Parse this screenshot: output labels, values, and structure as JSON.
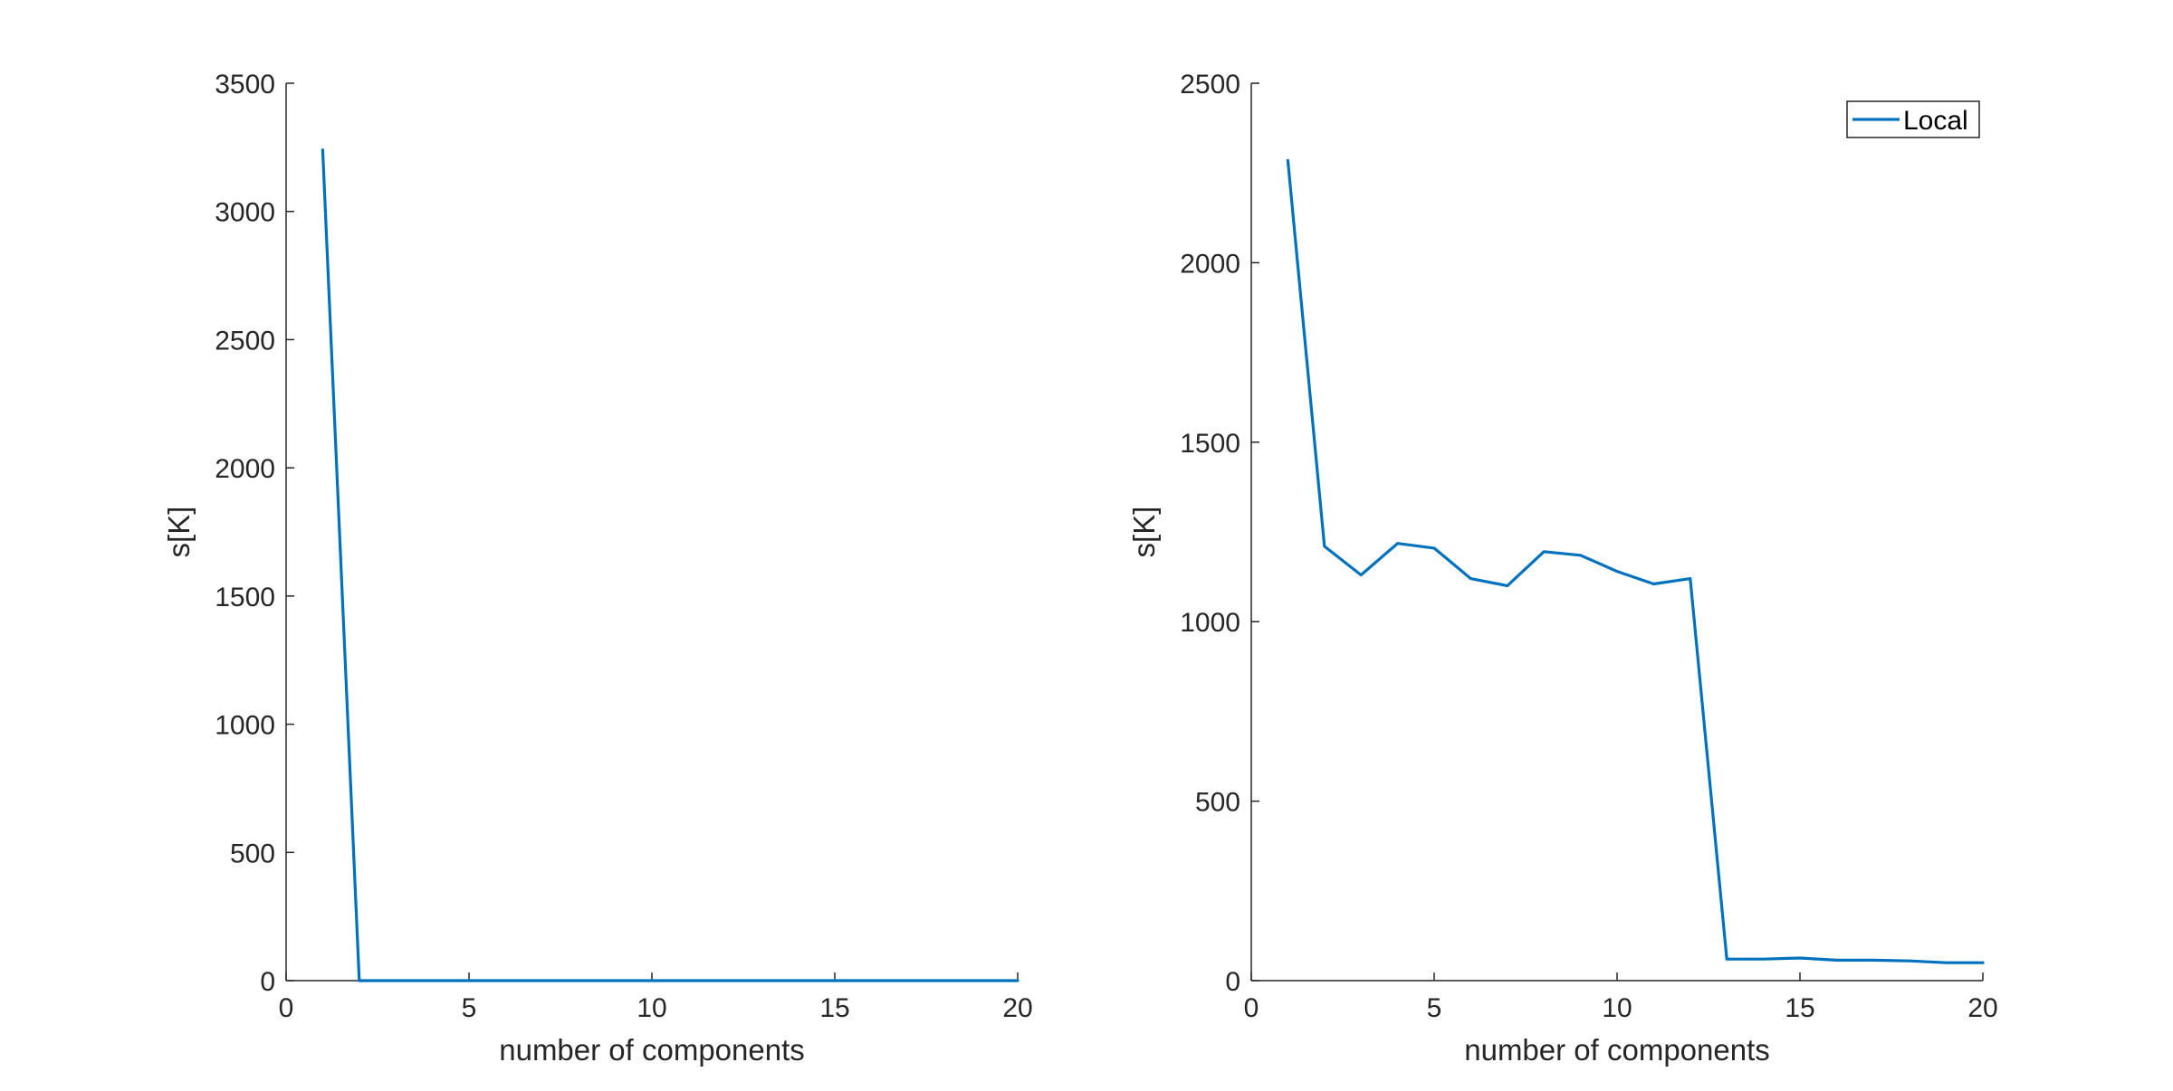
{
  "chart_data": [
    {
      "type": "line",
      "xlabel": "number of components",
      "ylabel": "s[K]",
      "xlim": [
        0,
        20
      ],
      "ylim": [
        0,
        3500
      ],
      "xticks": [
        0,
        5,
        10,
        15,
        20
      ],
      "yticks": [
        0,
        500,
        1000,
        1500,
        2000,
        2500,
        3000,
        3500
      ],
      "grid": false,
      "legend": null,
      "series": [
        {
          "color": "#0072BD",
          "x": [
            1,
            2,
            3,
            4,
            5,
            6,
            7,
            8,
            9,
            10,
            11,
            12,
            13,
            14,
            15,
            16,
            17,
            18,
            19,
            20
          ],
          "values": [
            3240,
            0,
            0,
            0,
            0,
            0,
            0,
            0,
            0,
            0,
            0,
            0,
            0,
            0,
            0,
            0,
            0,
            0,
            0,
            0
          ]
        }
      ]
    },
    {
      "type": "line",
      "xlabel": "number of components",
      "ylabel": "s[K]",
      "xlim": [
        0,
        20
      ],
      "ylim": [
        0,
        2500
      ],
      "xticks": [
        0,
        5,
        10,
        15,
        20
      ],
      "yticks": [
        0,
        500,
        1000,
        1500,
        2000,
        2500
      ],
      "grid": false,
      "legend": "top-right",
      "series": [
        {
          "name": "Local",
          "color": "#0072BD",
          "x": [
            1,
            2,
            3,
            4,
            5,
            6,
            7,
            8,
            9,
            10,
            11,
            12,
            13,
            14,
            15,
            16,
            17,
            18,
            19,
            20
          ],
          "values": [
            2285,
            1210,
            1130,
            1218,
            1205,
            1120,
            1100,
            1195,
            1185,
            1140,
            1105,
            1120,
            60,
            60,
            63,
            57,
            57,
            55,
            50,
            50
          ]
        }
      ]
    }
  ]
}
